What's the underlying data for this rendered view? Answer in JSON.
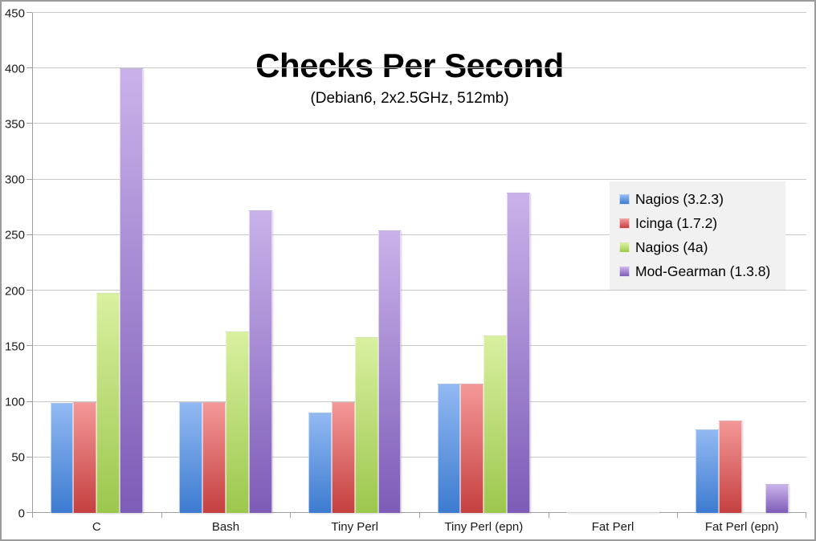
{
  "frame": {
    "background": "#ffffff",
    "border_color": "#9b9b9b"
  },
  "chart_data": {
    "type": "bar",
    "title": "Checks Per Second",
    "subtitle": "(Debian6, 2x2.5GHz, 512mb)",
    "categories": [
      "C",
      "Bash",
      "Tiny Perl",
      "Tiny Perl (epn)",
      "Fat Perl",
      "Fat Perl (epn)"
    ],
    "series": [
      {
        "name": "Nagios (3.2.3)",
        "color_top": "#92b9f2",
        "color_bottom": "#3d7bd0",
        "values": [
          99,
          100,
          90,
          116,
          1,
          75
        ]
      },
      {
        "name": "Icinga (1.7.2)",
        "color_top": "#f49898",
        "color_bottom": "#c54040",
        "values": [
          100,
          100,
          100,
          116,
          1,
          83
        ]
      },
      {
        "name": "Nagios (4a)",
        "color_top": "#d9f0a0",
        "color_bottom": "#9cc74d",
        "values": [
          198,
          163,
          158,
          160,
          1,
          1
        ]
      },
      {
        "name": "Mod-Gearman (1.3.8)",
        "color_top": "#c9b2ea",
        "color_bottom": "#7d5cb7",
        "values": [
          400,
          272,
          254,
          288,
          1,
          26
        ]
      }
    ],
    "ylim": [
      0,
      450
    ],
    "yticks": [
      0,
      50,
      100,
      150,
      200,
      250,
      300,
      350,
      400,
      450
    ],
    "grid": true,
    "legend_position": "right",
    "colors": {
      "grid": "#c8c8c8",
      "axis": "#9f9f9f",
      "legend_background": "#f1f1f1",
      "text": "#000000"
    }
  }
}
